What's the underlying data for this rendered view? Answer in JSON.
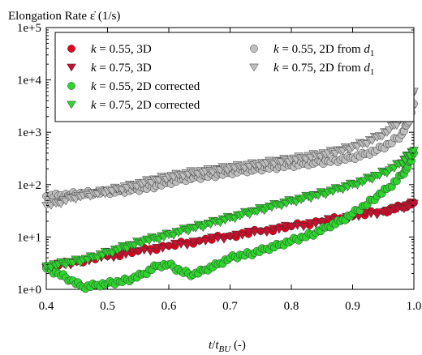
{
  "chart_data": {
    "type": "scatter",
    "title": "",
    "ylabel_top": "Elongation Rate ",
    "ylabel_symbol": "ε̇",
    "ylabel_unit": " (1/s)",
    "xlabel_t": "t",
    "xlabel_sub": "BU",
    "xlabel_unit": " (-)",
    "xlim": [
      0.4,
      1.0
    ],
    "ylim_log10": [
      0,
      5
    ],
    "yscale": "log",
    "x_ticks": [
      "0.4",
      "0.5",
      "0.6",
      "0.7",
      "0.8",
      "0.9",
      "1.0"
    ],
    "x_tick_values": [
      0.4,
      0.5,
      0.6,
      0.7,
      0.8,
      0.9,
      1.0
    ],
    "y_ticks": [
      "1e+0",
      "1e+1",
      "1e+2",
      "1e+3",
      "1e+4",
      "1e+5"
    ],
    "y_tick_exponents": [
      0,
      1,
      2,
      3,
      4,
      5
    ],
    "grid": false,
    "legend_position": "top",
    "legend_columns": [
      [
        {
          "k": "k",
          "eq": " = 0.55, 3D",
          "marker": "circle",
          "color": "#e2001a"
        },
        {
          "k": "k",
          "eq": " = 0.75, 3D",
          "marker": "triangle-down",
          "color": "#c8102e"
        },
        {
          "k": "k",
          "eq": " = 0.55, 2D corrected",
          "marker": "circle",
          "color": "#2dd62d"
        },
        {
          "k": "k",
          "eq": " = 0.75, 2D corrected",
          "marker": "triangle-down",
          "color": "#2dd62d"
        }
      ],
      [
        {
          "k": "k",
          "eq": " = 0.55, 2D from ",
          "dsym": "d",
          "dsub": "1",
          "marker": "circle",
          "color": "#bfbfbf"
        },
        {
          "k": "k",
          "eq": " = 0.75, 2D from ",
          "dsym": "d",
          "dsub": "1",
          "marker": "triangle-down",
          "color": "#bfbfbf"
        }
      ]
    ],
    "series": [
      {
        "name": "k = 0.55, 3D",
        "marker": "circle",
        "color": "#e2001a",
        "x": [
          0.4,
          0.45,
          0.5,
          0.55,
          0.6,
          0.65,
          0.7,
          0.75,
          0.8,
          0.85,
          0.9,
          0.95,
          0.98,
          1.0
        ],
        "y": [
          2.7,
          3.4,
          4.3,
          5.4,
          6.8,
          8.5,
          10.5,
          13.0,
          16.0,
          20.0,
          25.0,
          31.0,
          38.0,
          45.0
        ]
      },
      {
        "name": "k = 0.75, 3D",
        "marker": "triangle-down",
        "color": "#c8102e",
        "x": [
          0.4,
          0.45,
          0.5,
          0.55,
          0.6,
          0.65,
          0.7,
          0.75,
          0.8,
          0.85,
          0.9,
          0.95,
          0.98,
          1.0
        ],
        "y": [
          2.6,
          3.3,
          4.2,
          5.3,
          6.6,
          8.3,
          10.3,
          12.8,
          15.8,
          19.5,
          24.5,
          30.0,
          36.0,
          44.0
        ]
      },
      {
        "name": "k = 0.55, 2D corrected",
        "marker": "circle",
        "color": "#2dd62d",
        "x": [
          0.4,
          0.42,
          0.44,
          0.46,
          0.48,
          0.5,
          0.52,
          0.54,
          0.56,
          0.58,
          0.6,
          0.62,
          0.64,
          0.66,
          0.68,
          0.7,
          0.72,
          0.74,
          0.76,
          0.78,
          0.8,
          0.82,
          0.84,
          0.86,
          0.88,
          0.9,
          0.92,
          0.94,
          0.96,
          0.98,
          0.99,
          1.0
        ],
        "y": [
          2.5,
          2.0,
          1.5,
          1.1,
          1.2,
          1.3,
          1.4,
          1.6,
          2.0,
          2.8,
          3.0,
          2.2,
          1.9,
          2.4,
          3.0,
          4.0,
          4.5,
          5.0,
          6.0,
          7.0,
          8.5,
          10.0,
          12.0,
          16.0,
          20.0,
          28.0,
          40.0,
          60.0,
          90.0,
          150.0,
          220.0,
          400.0
        ]
      },
      {
        "name": "k = 0.75, 2D corrected",
        "marker": "triangle-down",
        "color": "#2dd62d",
        "x": [
          0.4,
          0.42,
          0.44,
          0.46,
          0.48,
          0.5,
          0.52,
          0.54,
          0.56,
          0.58,
          0.6,
          0.62,
          0.64,
          0.66,
          0.68,
          0.7,
          0.72,
          0.74,
          0.76,
          0.78,
          0.8,
          0.82,
          0.84,
          0.86,
          0.88,
          0.9,
          0.92,
          0.94,
          0.96,
          0.98,
          0.99,
          1.0
        ],
        "y": [
          2.8,
          3.0,
          3.3,
          3.6,
          4.2,
          5.0,
          6.0,
          7.0,
          8.5,
          9.5,
          11.0,
          13.0,
          15.0,
          17.0,
          20.0,
          23.0,
          27.0,
          31.0,
          36.0,
          42.0,
          48.0,
          55.0,
          63.0,
          72.0,
          85.0,
          100.0,
          120.0,
          150.0,
          190.0,
          260.0,
          350.0,
          450.0
        ]
      },
      {
        "name": "k = 0.55, 2D from d1",
        "marker": "circle",
        "color": "#bfbfbf",
        "x": [
          0.4,
          0.42,
          0.44,
          0.46,
          0.48,
          0.5,
          0.52,
          0.54,
          0.56,
          0.58,
          0.6,
          0.62,
          0.64,
          0.66,
          0.68,
          0.7,
          0.72,
          0.74,
          0.76,
          0.78,
          0.8,
          0.82,
          0.84,
          0.86,
          0.88,
          0.9,
          0.92,
          0.94,
          0.96,
          0.98,
          0.99,
          1.0
        ],
        "y": [
          60,
          62,
          65,
          68,
          70,
          72,
          75,
          80,
          85,
          95,
          110,
          125,
          135,
          145,
          155,
          170,
          185,
          195,
          210,
          220,
          235,
          250,
          265,
          280,
          300,
          330,
          380,
          460,
          600,
          900,
          1500,
          3500
        ]
      },
      {
        "name": "k = 0.75, 2D from d1",
        "marker": "triangle-down",
        "color": "#bfbfbf",
        "x": [
          0.4,
          0.42,
          0.44,
          0.46,
          0.48,
          0.5,
          0.52,
          0.54,
          0.56,
          0.58,
          0.6,
          0.62,
          0.64,
          0.66,
          0.68,
          0.7,
          0.72,
          0.74,
          0.76,
          0.78,
          0.8,
          0.82,
          0.84,
          0.86,
          0.88,
          0.9,
          0.92,
          0.94,
          0.96,
          0.98,
          0.99,
          1.0
        ],
        "y": [
          40,
          45,
          55,
          62,
          68,
          75,
          85,
          95,
          110,
          125,
          140,
          155,
          170,
          180,
          195,
          210,
          225,
          240,
          260,
          280,
          300,
          330,
          360,
          400,
          450,
          520,
          620,
          800,
          1100,
          1800,
          3000,
          6000
        ]
      }
    ]
  }
}
